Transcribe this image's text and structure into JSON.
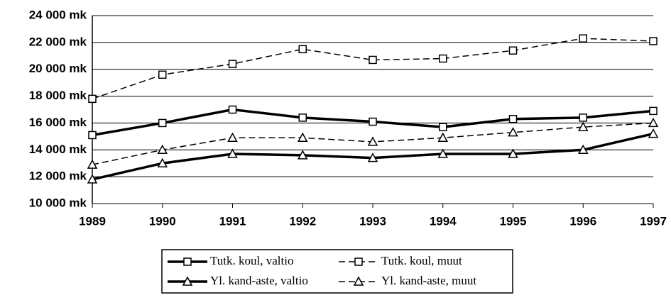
{
  "chart_data": {
    "type": "line",
    "categories": [
      "1989",
      "1990",
      "1991",
      "1992",
      "1993",
      "1994",
      "1995",
      "1996",
      "1997"
    ],
    "series": [
      {
        "name": "Tutk. koul, valtio",
        "color": "#000000",
        "dash": false,
        "marker": "square",
        "values": [
          15100,
          16000,
          17000,
          16400,
          16100,
          15700,
          16300,
          16400,
          16900
        ]
      },
      {
        "name": "Tutk. koul, muut",
        "color": "#000000",
        "dash": true,
        "marker": "square",
        "values": [
          17800,
          19600,
          20400,
          21500,
          20700,
          20800,
          21400,
          22300,
          22100
        ]
      },
      {
        "name": "Yl. kand-aste, valtio",
        "color": "#000000",
        "dash": false,
        "marker": "triangle",
        "values": [
          11800,
          13000,
          13700,
          13600,
          13400,
          13700,
          13700,
          14000,
          15200
        ]
      },
      {
        "name": "Yl. kand-aste, muut",
        "color": "#000000",
        "dash": true,
        "marker": "triangle",
        "values": [
          12900,
          14000,
          14900,
          14900,
          14600,
          14900,
          15300,
          15700,
          16000
        ]
      }
    ],
    "ylim": [
      10000,
      24000
    ],
    "yticks": [
      {
        "value": 10000,
        "label": "10 000 mk"
      },
      {
        "value": 12000,
        "label": "12 000 mk"
      },
      {
        "value": 14000,
        "label": "14 000 mk"
      },
      {
        "value": 16000,
        "label": "16 000 mk"
      },
      {
        "value": 18000,
        "label": "18 000 mk"
      },
      {
        "value": 20000,
        "label": "20 000 mk"
      },
      {
        "value": 22000,
        "label": "22 000 mk"
      },
      {
        "value": 24000,
        "label": "24 000 mk"
      }
    ],
    "grid": true,
    "legend": "bottom"
  }
}
